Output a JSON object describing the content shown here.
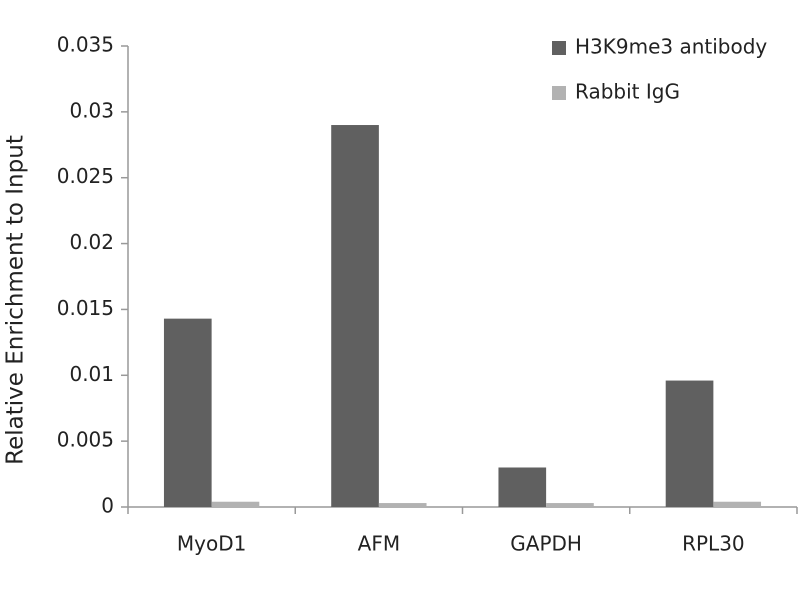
{
  "chart_data": {
    "type": "bar",
    "y_label": "Relative Enrichment to Input",
    "categories": [
      "MyoD1",
      "AFM",
      "GAPDH",
      "RPL30"
    ],
    "series": [
      {
        "name": "H3K9me3 antibody",
        "color": "#606060",
        "values": [
          0.0143,
          0.029,
          0.003,
          0.0096
        ]
      },
      {
        "name": "Rabbit IgG",
        "color": "#b2b2b2",
        "values": [
          0.0004,
          0.0003,
          0.0003,
          0.0004
        ]
      }
    ],
    "ylim": [
      0,
      0.035
    ],
    "yticks": [
      0,
      0.005,
      0.01,
      0.015,
      0.02,
      0.025,
      0.03,
      0.035
    ],
    "grid": false,
    "legend": "top-right"
  }
}
